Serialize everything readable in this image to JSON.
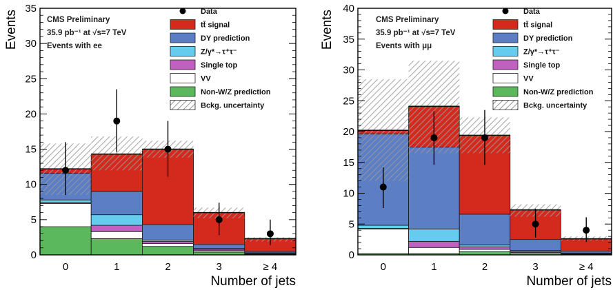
{
  "chart_data": [
    {
      "type": "bar",
      "stacked": true,
      "categories": [
        "0",
        "1",
        "2",
        "3",
        "≥ 4"
      ],
      "xlabel": "Number of jets",
      "ylabel": "Events",
      "ylim": [
        0,
        35
      ],
      "yticks": [
        0,
        5,
        10,
        15,
        20,
        25,
        30,
        35
      ],
      "info": [
        "CMS Preliminary",
        "35.9 pb⁻¹ at √s=7 TeV",
        "Events with ee"
      ],
      "legend_position": "top-right",
      "series": [
        {
          "name": "Non-W/Z prediction",
          "color": "#5cb85c",
          "values": [
            4.0,
            2.3,
            1.2,
            0.4,
            0.1
          ]
        },
        {
          "name": "VV",
          "color": "#ffffff",
          "values": [
            3.3,
            1.0,
            0.4,
            0.2,
            0.05
          ]
        },
        {
          "name": "Single top",
          "color": "#c060c0",
          "values": [
            0.1,
            0.9,
            0.3,
            0.2,
            0.1
          ]
        },
        {
          "name": "Z/γ*→τ⁺τ⁻",
          "color": "#66ccee",
          "values": [
            0.4,
            1.5,
            0.2,
            0.1,
            0.05
          ]
        },
        {
          "name": "DY prediction",
          "color": "#5b7ec4",
          "values": [
            3.8,
            3.3,
            2.2,
            0.6,
            0.2
          ]
        },
        {
          "name": "tt̄ signal",
          "color": "#d42a1e",
          "values": [
            0.6,
            5.3,
            10.7,
            4.5,
            1.8
          ]
        }
      ],
      "uncertainty": {
        "name": "Bckg. uncertainty",
        "low": [
          8.5,
          12.0,
          13.8,
          5.2,
          1.9
        ],
        "high": [
          15.8,
          16.8,
          16.2,
          6.7,
          2.5
        ]
      },
      "data": {
        "name": "Data",
        "values": [
          12,
          19,
          15,
          5,
          3
        ],
        "err_low": [
          3.5,
          4.4,
          3.9,
          2.2,
          1.6
        ],
        "err_high": [
          4.0,
          4.5,
          4.0,
          2.4,
          2.0
        ]
      }
    },
    {
      "type": "bar",
      "stacked": true,
      "categories": [
        "0",
        "1",
        "2",
        "3",
        "≥ 4"
      ],
      "xlabel": "Number of jets",
      "ylabel": "Events",
      "ylim": [
        0,
        40
      ],
      "yticks": [
        0,
        5,
        10,
        15,
        20,
        25,
        30,
        35,
        40
      ],
      "info": [
        "CMS Preliminary",
        "35.9 pb⁻¹ at √s=7 TeV",
        "Events with μμ"
      ],
      "legend_position": "top-right",
      "series": [
        {
          "name": "Non-W/Z prediction",
          "color": "#5cb85c",
          "values": [
            0.2,
            0.2,
            0.5,
            0.2,
            0.1
          ]
        },
        {
          "name": "VV",
          "color": "#ffffff",
          "values": [
            4.0,
            1.0,
            0.4,
            0.2,
            0.05
          ]
        },
        {
          "name": "Single top",
          "color": "#c060c0",
          "values": [
            0.1,
            1.0,
            0.4,
            0.2,
            0.1
          ]
        },
        {
          "name": "Z/γ*→τ⁺τ⁻",
          "color": "#66ccee",
          "values": [
            0.5,
            2.0,
            0.3,
            0.1,
            0.05
          ]
        },
        {
          "name": "DY prediction",
          "color": "#5b7ec4",
          "values": [
            14.8,
            13.3,
            5.0,
            1.8,
            0.3
          ]
        },
        {
          "name": "tt̄ signal",
          "color": "#d42a1e",
          "values": [
            0.6,
            6.6,
            12.8,
            4.8,
            2.0
          ]
        }
      ],
      "uncertainty": {
        "name": "Bckg. uncertainty",
        "low": [
          12.0,
          16.5,
          16.5,
          6.2,
          2.3
        ],
        "high": [
          28.5,
          31.5,
          22.3,
          8.2,
          3.0
        ]
      },
      "data": {
        "name": "Data",
        "values": [
          11,
          19,
          19,
          5,
          4
        ],
        "err_low": [
          3.4,
          4.4,
          4.4,
          2.2,
          1.9
        ],
        "err_high": [
          3.2,
          4.3,
          4.5,
          2.5,
          2.1
        ]
      }
    }
  ]
}
